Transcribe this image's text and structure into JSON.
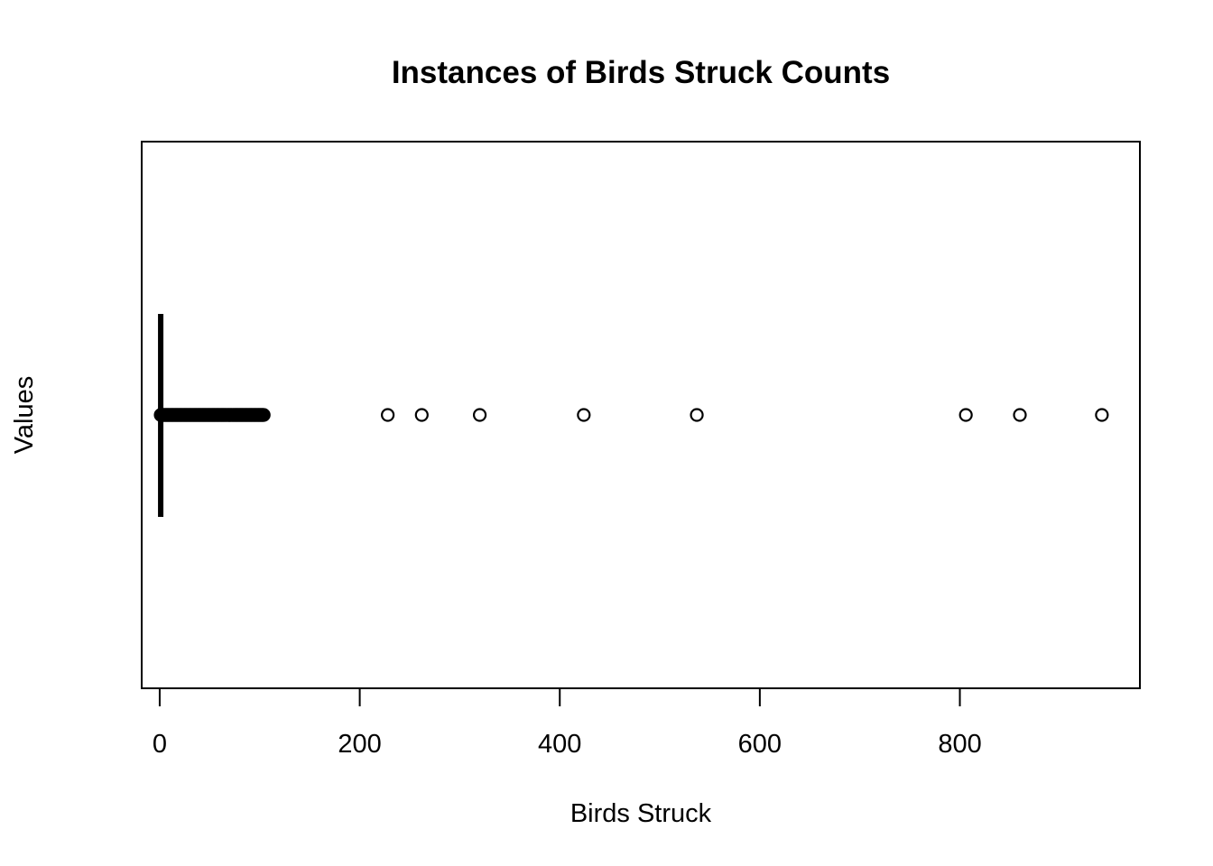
{
  "chart_data": {
    "type": "boxplot",
    "orientation": "horizontal",
    "title": "Instances of Birds Struck Counts",
    "xlabel": "Birds Struck",
    "ylabel": "Values",
    "xlim": [
      -18,
      980
    ],
    "x_ticks": [
      0,
      200,
      400,
      600,
      800
    ],
    "x_tick_labels": [
      "0",
      "200",
      "400",
      "600",
      "800"
    ],
    "grid": false,
    "legend": "none",
    "box": {
      "min": 1,
      "q1": 1,
      "median": 1,
      "q3": 1,
      "whisker_high": 1
    },
    "dense_outlier_range": [
      1,
      104
    ],
    "outliers": [
      228,
      262,
      320,
      424,
      537,
      806,
      860,
      942
    ],
    "colors": {
      "ink": "#000000",
      "background": "#ffffff"
    }
  }
}
